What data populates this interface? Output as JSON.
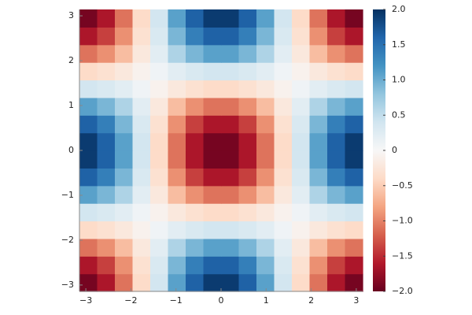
{
  "chart_data": {
    "type": "heatmap",
    "xlim": [
      -3.14159,
      3.14159
    ],
    "ylim": [
      -3.14159,
      3.14159
    ],
    "xticks": [
      {
        "value": -3,
        "label": "−3"
      },
      {
        "value": -2,
        "label": "−2"
      },
      {
        "value": -1,
        "label": "−1"
      },
      0,
      1,
      2,
      3
    ],
    "yticks": [
      {
        "value": -3,
        "label": "−3"
      },
      {
        "value": -2,
        "label": "−2"
      },
      {
        "value": -1,
        "label": "−1"
      },
      0,
      1,
      2,
      3
    ],
    "zlim": [
      -2,
      2
    ],
    "zticks": [
      {
        "value": -2,
        "label": "−2.0"
      },
      {
        "value": -1.5,
        "label": "−1.5"
      },
      {
        "value": -1,
        "label": "−1.0"
      },
      {
        "value": -0.5,
        "label": "−0.5"
      },
      0,
      0.5,
      {
        "value": 1,
        "label": "1.0"
      },
      1.5,
      {
        "value": 2,
        "label": "2.0"
      }
    ],
    "colorscale": [
      "#67001f",
      "#b2182b",
      "#d6604d",
      "#f4a582",
      "#fddbc7",
      "#f7f7f7",
      "#d1e5f0",
      "#92c5de",
      "#4393c3",
      "#2166ac",
      "#053061"
    ],
    "z": [
      [
        -1.92,
        -1.63,
        -1.09,
        -0.38,
        0.38,
        1.09,
        1.63,
        1.92,
        1.92,
        1.63,
        1.09,
        0.38,
        -0.38,
        -1.09,
        -1.63,
        -1.92
      ],
      [
        -1.63,
        -1.38,
        -0.92,
        -0.32,
        0.32,
        0.92,
        1.38,
        1.63,
        1.63,
        1.38,
        0.92,
        0.32,
        -0.32,
        -0.92,
        -1.38,
        -1.63
      ],
      [
        -1.09,
        -0.92,
        -0.62,
        -0.22,
        0.22,
        0.62,
        0.92,
        1.09,
        1.09,
        0.92,
        0.62,
        0.22,
        -0.22,
        -0.62,
        -0.92,
        -1.09
      ],
      [
        -0.38,
        -0.32,
        -0.22,
        -0.08,
        0.08,
        0.22,
        0.32,
        0.38,
        0.38,
        0.32,
        0.22,
        0.08,
        -0.08,
        -0.22,
        -0.32,
        -0.38
      ],
      [
        0.38,
        0.32,
        0.22,
        0.08,
        -0.08,
        -0.22,
        -0.32,
        -0.38,
        -0.38,
        -0.32,
        -0.22,
        -0.08,
        0.08,
        0.22,
        0.32,
        0.38
      ],
      [
        1.09,
        0.92,
        0.62,
        0.22,
        -0.22,
        -0.62,
        -0.92,
        -1.09,
        -1.09,
        -0.92,
        -0.62,
        -0.22,
        0.22,
        0.62,
        0.92,
        1.09
      ],
      [
        1.63,
        1.38,
        0.92,
        0.32,
        -0.32,
        -0.92,
        -1.38,
        -1.63,
        -1.63,
        -1.38,
        -0.92,
        -0.32,
        0.32,
        0.92,
        1.38,
        1.63
      ],
      [
        1.92,
        1.63,
        1.09,
        0.38,
        -0.38,
        -1.09,
        -1.63,
        -1.92,
        -1.92,
        -1.63,
        -1.09,
        -0.38,
        0.38,
        1.09,
        1.63,
        1.92
      ],
      [
        1.92,
        1.63,
        1.09,
        0.38,
        -0.38,
        -1.09,
        -1.63,
        -1.92,
        -1.92,
        -1.63,
        -1.09,
        -0.38,
        0.38,
        1.09,
        1.63,
        1.92
      ],
      [
        1.63,
        1.38,
        0.92,
        0.32,
        -0.32,
        -0.92,
        -1.38,
        -1.63,
        -1.63,
        -1.38,
        -0.92,
        -0.32,
        0.32,
        0.92,
        1.38,
        1.63
      ],
      [
        1.09,
        0.92,
        0.62,
        0.22,
        -0.22,
        -0.62,
        -0.92,
        -1.09,
        -1.09,
        -0.92,
        -0.62,
        -0.22,
        0.22,
        0.62,
        0.92,
        1.09
      ],
      [
        0.38,
        0.32,
        0.22,
        0.08,
        -0.08,
        -0.22,
        -0.32,
        -0.38,
        -0.38,
        -0.32,
        -0.22,
        -0.08,
        0.08,
        0.22,
        0.32,
        0.38
      ],
      [
        -0.38,
        -0.32,
        -0.22,
        -0.08,
        0.08,
        0.22,
        0.32,
        0.38,
        0.38,
        0.32,
        0.22,
        0.08,
        -0.08,
        -0.22,
        -0.32,
        -0.38
      ],
      [
        -1.09,
        -0.92,
        -0.62,
        -0.22,
        0.22,
        0.62,
        0.92,
        1.09,
        1.09,
        0.92,
        0.62,
        0.22,
        -0.22,
        -0.62,
        -0.92,
        -1.09
      ],
      [
        -1.63,
        -1.38,
        -0.92,
        -0.32,
        0.32,
        0.92,
        1.38,
        1.63,
        1.63,
        1.38,
        0.92,
        0.32,
        -0.32,
        -0.92,
        -1.38,
        -1.63
      ],
      [
        -1.92,
        -1.63,
        -1.09,
        -0.38,
        0.38,
        1.09,
        1.63,
        1.92,
        1.92,
        1.63,
        1.09,
        0.38,
        -0.38,
        -1.09,
        -1.63,
        -1.92
      ]
    ]
  }
}
